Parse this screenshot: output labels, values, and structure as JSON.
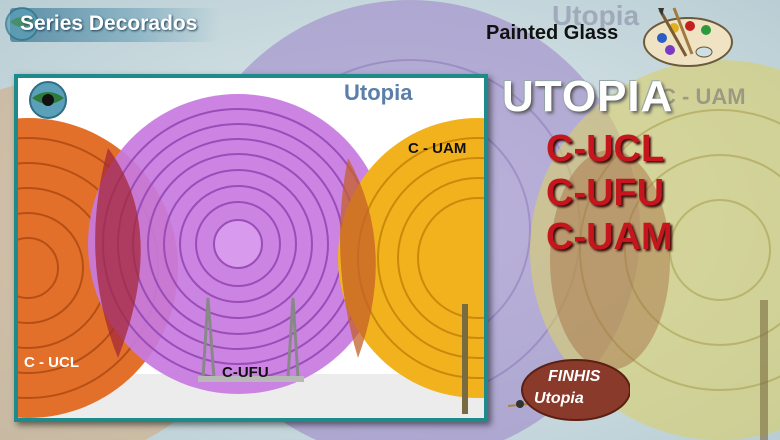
{
  "header": {
    "series_title": "Series Decorados",
    "painted_glass": "Painted Glass"
  },
  "main": {
    "big_title": "UTOPIA",
    "codes": [
      "C-UCL",
      "C-UFU",
      "C-UAM"
    ]
  },
  "background_text": {
    "utopia_faded": "Utopia",
    "uam_faded": "C - UAM"
  },
  "photo": {
    "caption_utopia": "Utopia",
    "plate_labels": {
      "uam": "C - UAM",
      "ucl": "C - UCL",
      "ufu": "C-UFU"
    }
  },
  "tag": {
    "line1": "FINHIS",
    "line2": "Utopia"
  },
  "colors": {
    "orange_plate": "#e2702a",
    "purple_plate": "#c77ae0",
    "yellow_plate": "#f2b21e",
    "frame": "#1f8a8a",
    "code_red": "#c4161c"
  },
  "icons": {
    "globe": "globe-icon",
    "palette": "paint-palette-icon"
  }
}
